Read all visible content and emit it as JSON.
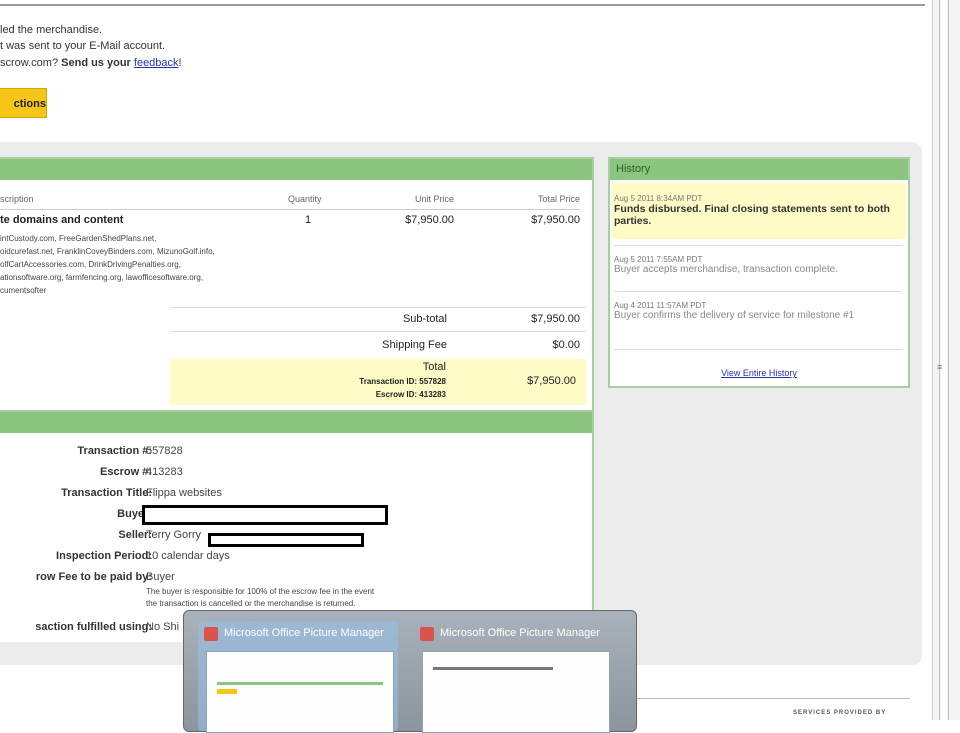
{
  "messages": {
    "line1": "led the merchandise.",
    "line2": "t was sent to your E-Mail account.",
    "line3_prefix": "scrow.com?",
    "line3_bold": "Send us your",
    "line3_link": "feedback",
    "line3_suffix": "!"
  },
  "action_button": "ctions",
  "items_table": {
    "headers": {
      "description": "scription",
      "quantity": "Quantity",
      "unit_price": "Unit Price",
      "total_price": "Total Price"
    },
    "item": {
      "title": "te domains and content",
      "quantity": "1",
      "unit_price": "$7,950.00",
      "total_price": "$7,950.00",
      "details": [
        "intCustody.com, FreeGardenShedPlans.net,",
        "oidcurefast.net, FranklinCoveyBinders.com, MizunoGolf.info,",
        "olfCartAccessories.com, DrinkDrivingPenalties.org,",
        "ationsoftware.org, farmfencing.org, lawofficesoftware.org,",
        "cumentsofter"
      ]
    },
    "subtotal_label": "Sub-total",
    "subtotal": "$7,950.00",
    "shipping_label": "Shipping Fee",
    "shipping": "$0.00",
    "total_label": "Total",
    "total": "$7,950.00",
    "transaction_id_label": "Transaction ID:",
    "transaction_id": "557828",
    "escrow_id_label": "Escrow ID:",
    "escrow_id": "413283"
  },
  "details": [
    {
      "label": "Transaction #:",
      "value": "557828"
    },
    {
      "label": "Escrow #:",
      "value": "413283"
    },
    {
      "label": "Transaction Title:",
      "value": "Flippa websites"
    },
    {
      "label": "Buyer:",
      "value": ""
    },
    {
      "label": "Seller:",
      "value": "Terry Gorry"
    },
    {
      "label": "Inspection Period:",
      "value": "10 calendar days"
    },
    {
      "label": "row Fee to be paid by:",
      "value": "Buyer"
    },
    {
      "label": "saction fulfilled using:",
      "value": "No Shi"
    }
  ],
  "fee_note": [
    "The buyer is responsible for 100% of the escrow fee in the event",
    "the transaction is cancelled or the merchandise is returned."
  ],
  "history": {
    "title": "History",
    "items": [
      {
        "date": "Aug 5 2011 8:34AM PDT",
        "text": "Funds disbursed. Final closing statements sent to both parties."
      },
      {
        "date": "Aug 5 2011 7:55AM PDT",
        "text": "Buyer accepts merchandise, transaction complete."
      },
      {
        "date": "Aug 4 2011 11:57AM PDT",
        "text": "Buyer confirms the delivery of service for milestone #1"
      }
    ],
    "view_all": "View Entire History"
  },
  "taskbar_previews": [
    "Microsoft Office Picture Manager",
    "Microsoft Office Picture Manager"
  ],
  "footer": "SERVICES PROVIDED BY",
  "colors": {
    "green_header": "#8cc57f",
    "highlight": "#fffbc6",
    "button": "#f5c518"
  }
}
